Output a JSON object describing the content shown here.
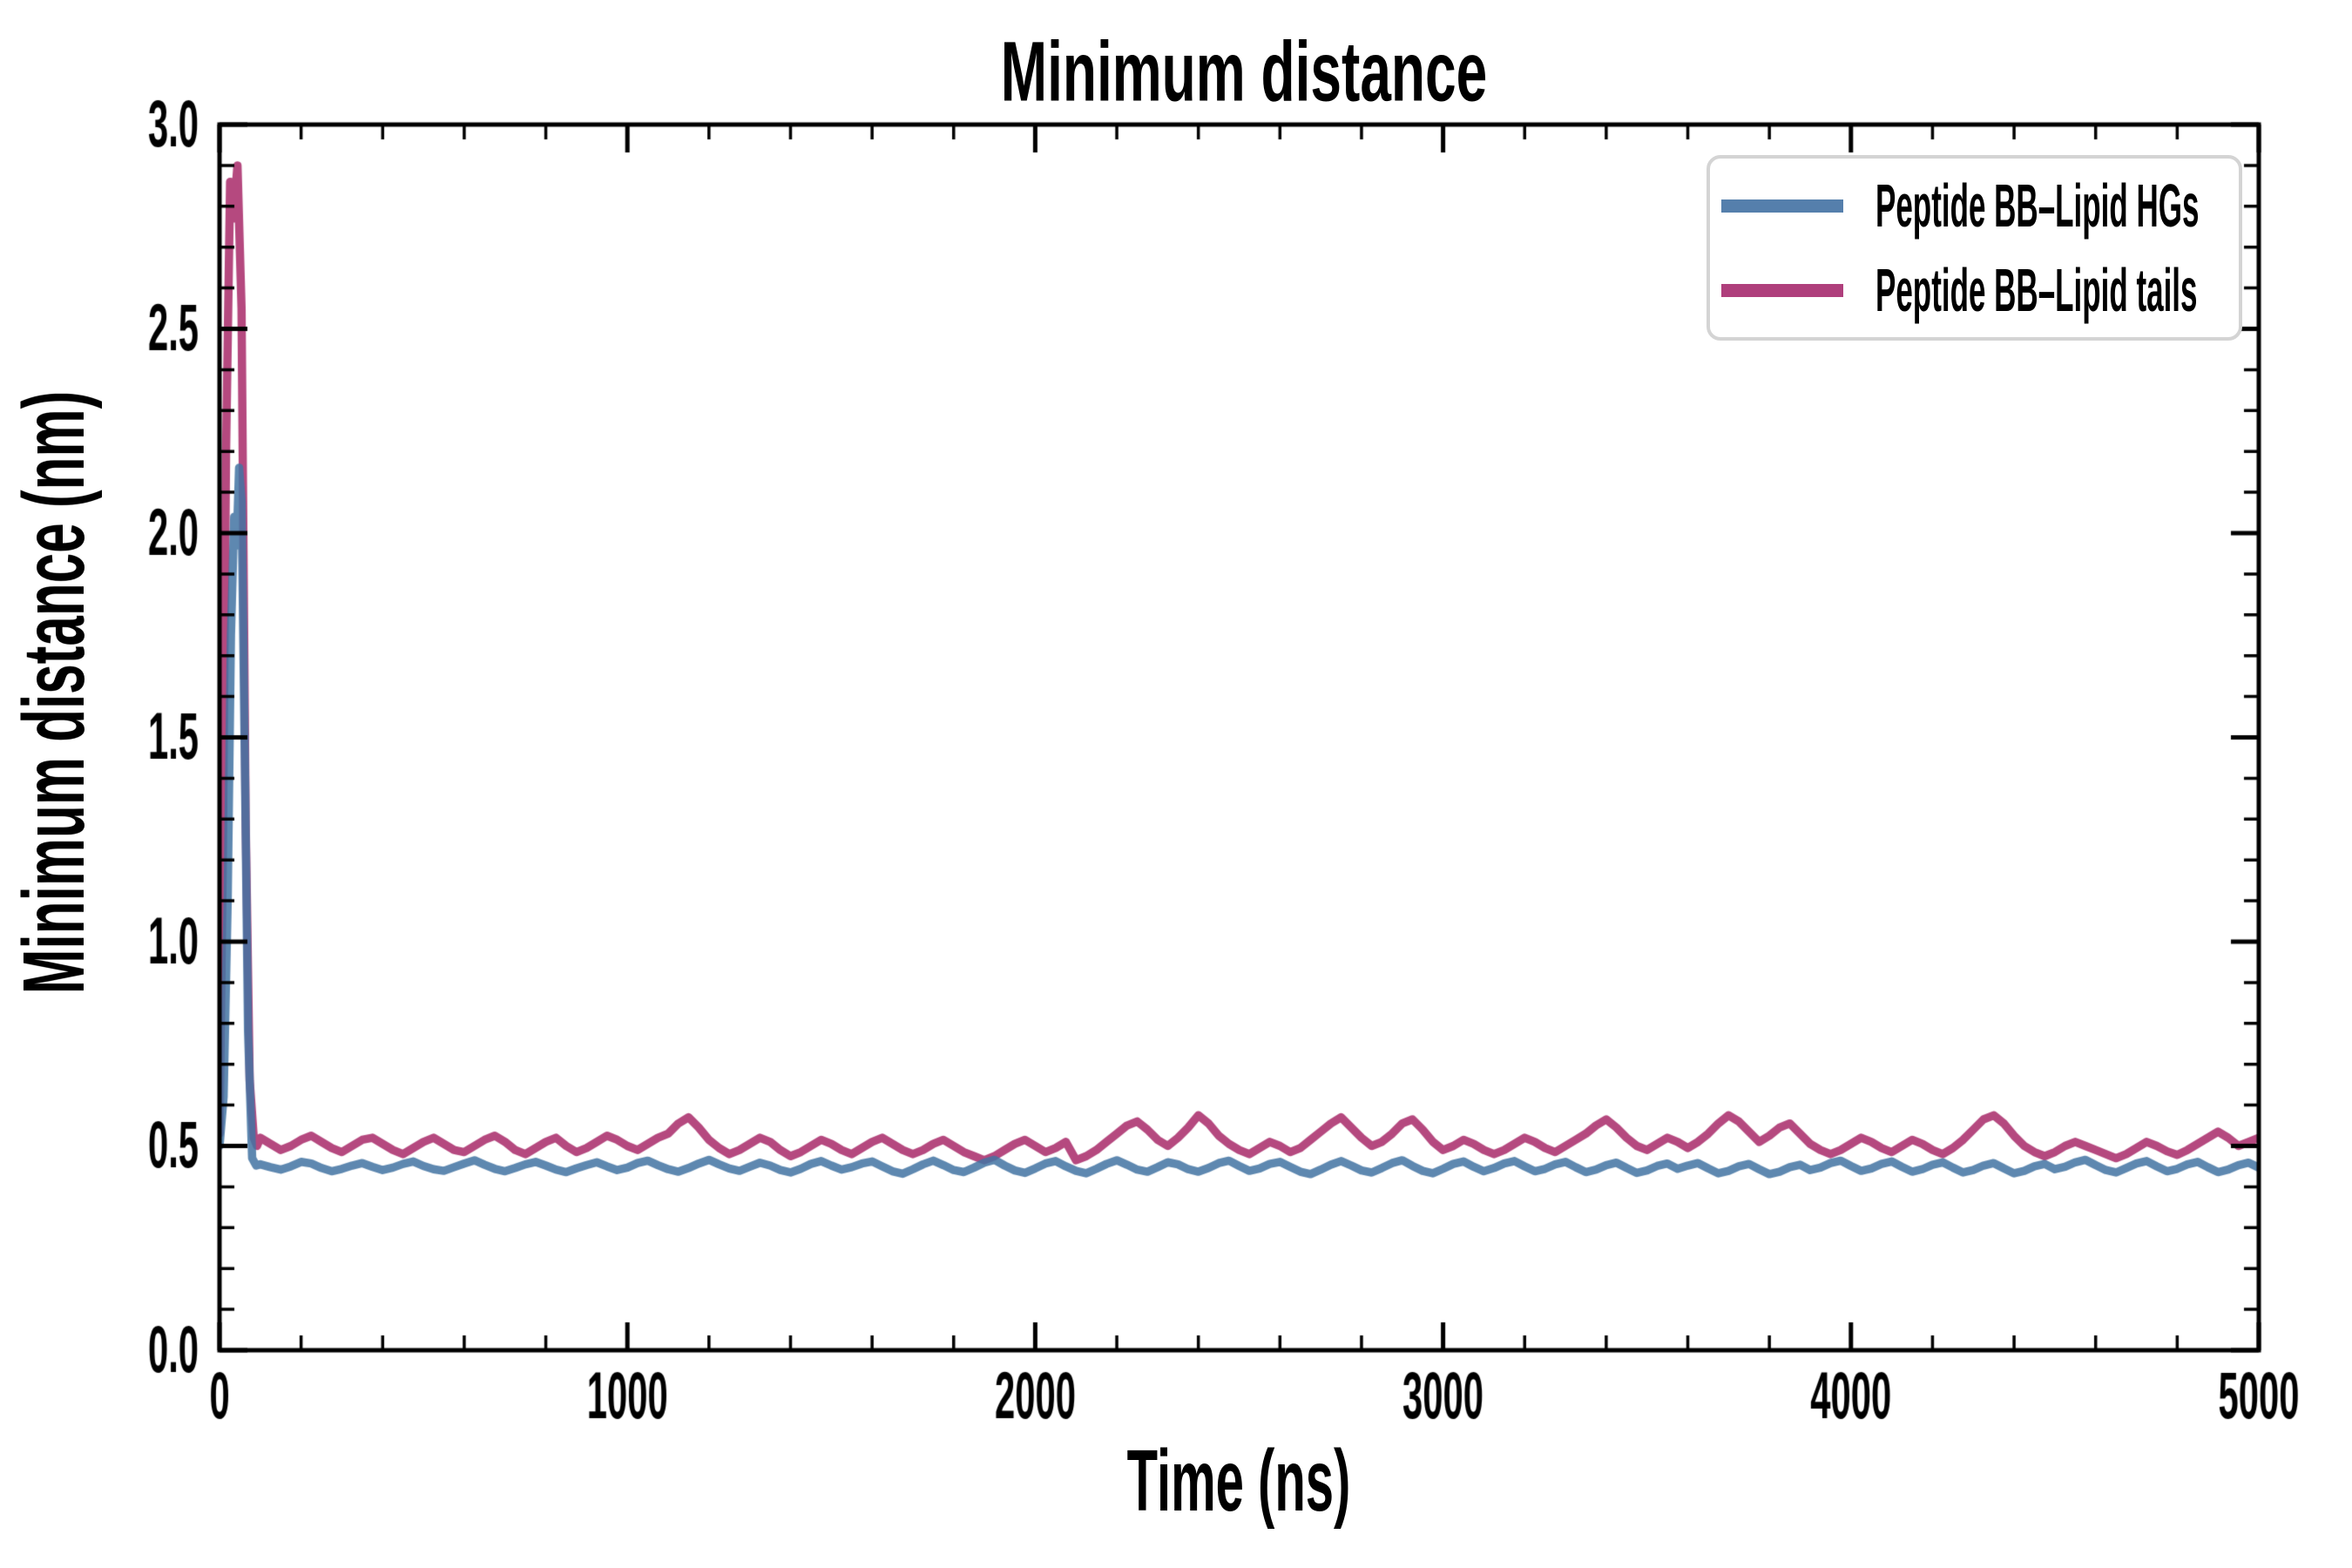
{
  "figure": {
    "title": "Minimum distance"
  },
  "axes": {
    "xlabel": "Time (ns)",
    "ylabel": "Minimum distance (nm)",
    "x_tick_labels": [
      "0",
      "1000",
      "2000",
      "3000",
      "4000",
      "5000"
    ],
    "y_tick_labels": [
      "0.0",
      "0.5",
      "1.0",
      "1.5",
      "2.0",
      "2.5",
      "3.0"
    ]
  },
  "legend": {
    "border_color": "#d4d4d4",
    "items": [
      {
        "label": "Peptide BB–Lipid HGs",
        "color": "#557FAC"
      },
      {
        "label": "Peptide BB–Lipid tails",
        "color": "#AF3F7C"
      }
    ]
  },
  "colors": {
    "background": "#ffffff",
    "axis": "#000000",
    "text": "#000000",
    "hg_line": "rgba(66,115,162,0.85)",
    "hg_solid": "#557FAC",
    "tails_line": "#B5497F"
  },
  "chart_data": {
    "type": "line",
    "title": "Minimum distance",
    "xlabel": "Time (ns)",
    "ylabel": "Minimum distance (nm)",
    "xlim": [
      0,
      5000
    ],
    "ylim": [
      0.0,
      3.0
    ],
    "x_major_ticks": [
      0,
      1000,
      2000,
      3000,
      4000,
      5000
    ],
    "x_minor_tick_step": 200,
    "y_major_ticks": [
      0.0,
      0.5,
      1.0,
      1.5,
      2.0,
      2.5,
      3.0
    ],
    "y_minor_tick_step": 0.1,
    "grid": false,
    "tick_direction": "in",
    "legend_position": "upper right",
    "series": [
      {
        "name": "Peptide BB–Lipid tails",
        "color": "#B5497F",
        "head": [
          [
            0,
            0.53
          ],
          [
            8,
            1.2
          ],
          [
            16,
            2.2
          ],
          [
            26,
            2.86
          ],
          [
            34,
            2.77
          ],
          [
            44,
            2.9
          ],
          [
            54,
            2.55
          ],
          [
            64,
            1.3
          ],
          [
            74,
            0.66
          ],
          [
            84,
            0.52
          ],
          [
            92,
            0.5
          ]
        ],
        "t0": 100,
        "dt": 25,
        "values": [
          0.52,
          0.505,
          0.49,
          0.5,
          0.515,
          0.525,
          0.51,
          0.495,
          0.485,
          0.5,
          0.515,
          0.52,
          0.505,
          0.49,
          0.48,
          0.495,
          0.51,
          0.52,
          0.505,
          0.49,
          0.485,
          0.5,
          0.515,
          0.525,
          0.51,
          0.49,
          0.48,
          0.495,
          0.51,
          0.52,
          0.5,
          0.485,
          0.495,
          0.51,
          0.525,
          0.515,
          0.5,
          0.49,
          0.505,
          0.52,
          0.53,
          0.555,
          0.57,
          0.545,
          0.515,
          0.495,
          0.48,
          0.49,
          0.505,
          0.52,
          0.51,
          0.49,
          0.475,
          0.485,
          0.5,
          0.515,
          0.505,
          0.49,
          0.48,
          0.495,
          0.51,
          0.52,
          0.505,
          0.49,
          0.48,
          0.49,
          0.505,
          0.515,
          0.5,
          0.485,
          0.475,
          0.465,
          0.475,
          0.49,
          0.505,
          0.515,
          0.5,
          0.485,
          0.495,
          0.51,
          0.465,
          0.475,
          0.49,
          0.51,
          0.53,
          0.55,
          0.56,
          0.54,
          0.515,
          0.5,
          0.52,
          0.545,
          0.575,
          0.555,
          0.525,
          0.505,
          0.49,
          0.48,
          0.495,
          0.51,
          0.5,
          0.485,
          0.495,
          0.515,
          0.535,
          0.555,
          0.57,
          0.545,
          0.52,
          0.5,
          0.51,
          0.53,
          0.555,
          0.565,
          0.54,
          0.51,
          0.49,
          0.5,
          0.515,
          0.505,
          0.49,
          0.48,
          0.49,
          0.505,
          0.52,
          0.51,
          0.495,
          0.485,
          0.5,
          0.515,
          0.53,
          0.55,
          0.565,
          0.545,
          0.52,
          0.5,
          0.49,
          0.505,
          0.52,
          0.51,
          0.495,
          0.51,
          0.53,
          0.555,
          0.575,
          0.56,
          0.535,
          0.51,
          0.525,
          0.545,
          0.555,
          0.53,
          0.505,
          0.49,
          0.48,
          0.49,
          0.505,
          0.52,
          0.51,
          0.495,
          0.485,
          0.5,
          0.515,
          0.505,
          0.49,
          0.48,
          0.495,
          0.515,
          0.54,
          0.565,
          0.575,
          0.555,
          0.525,
          0.5,
          0.485,
          0.475,
          0.485,
          0.5,
          0.51,
          0.5,
          0.49,
          0.48,
          0.47,
          0.48,
          0.495,
          0.51,
          0.5,
          0.487,
          0.478,
          0.49,
          0.505,
          0.52,
          0.535,
          0.52,
          0.5,
          0.51,
          0.52
        ]
      },
      {
        "name": "Peptide BB–Lipid HGs",
        "color": "#557FAC",
        "head": [
          [
            0,
            0.5
          ],
          [
            10,
            0.62
          ],
          [
            20,
            1.1
          ],
          [
            28,
            1.75
          ],
          [
            36,
            2.04
          ],
          [
            42,
            1.97
          ],
          [
            48,
            2.16
          ],
          [
            54,
            2.08
          ],
          [
            62,
            1.45
          ],
          [
            70,
            0.78
          ],
          [
            80,
            0.47
          ],
          [
            90,
            0.452
          ]
        ],
        "t0": 100,
        "dt": 25,
        "values": [
          0.455,
          0.448,
          0.442,
          0.45,
          0.461,
          0.457,
          0.446,
          0.438,
          0.444,
          0.452,
          0.458,
          0.449,
          0.441,
          0.447,
          0.456,
          0.462,
          0.451,
          0.443,
          0.439,
          0.448,
          0.457,
          0.465,
          0.454,
          0.444,
          0.438,
          0.446,
          0.455,
          0.461,
          0.452,
          0.442,
          0.436,
          0.445,
          0.453,
          0.46,
          0.45,
          0.441,
          0.447,
          0.458,
          0.464,
          0.453,
          0.443,
          0.437,
          0.446,
          0.457,
          0.466,
          0.455,
          0.445,
          0.439,
          0.449,
          0.459,
          0.452,
          0.441,
          0.435,
          0.444,
          0.456,
          0.463,
          0.452,
          0.442,
          0.448,
          0.457,
          0.462,
          0.45,
          0.438,
          0.432,
          0.443,
          0.455,
          0.464,
          0.453,
          0.441,
          0.436,
          0.447,
          0.459,
          0.466,
          0.452,
          0.44,
          0.434,
          0.445,
          0.457,
          0.463,
          0.45,
          0.439,
          0.433,
          0.444,
          0.456,
          0.465,
          0.454,
          0.442,
          0.437,
          0.448,
          0.46,
          0.455,
          0.443,
          0.437,
          0.446,
          0.458,
          0.464,
          0.451,
          0.439,
          0.445,
          0.456,
          0.461,
          0.449,
          0.437,
          0.431,
          0.442,
          0.454,
          0.463,
          0.452,
          0.44,
          0.435,
          0.446,
          0.458,
          0.465,
          0.451,
          0.439,
          0.433,
          0.444,
          0.456,
          0.462,
          0.449,
          0.438,
          0.446,
          0.457,
          0.463,
          0.45,
          0.438,
          0.444,
          0.455,
          0.461,
          0.448,
          0.436,
          0.442,
          0.453,
          0.459,
          0.446,
          0.434,
          0.44,
          0.451,
          0.457,
          0.444,
          0.452,
          0.458,
          0.445,
          0.433,
          0.439,
          0.45,
          0.456,
          0.443,
          0.431,
          0.437,
          0.448,
          0.454,
          0.441,
          0.447,
          0.458,
          0.464,
          0.451,
          0.439,
          0.445,
          0.456,
          0.462,
          0.449,
          0.437,
          0.443,
          0.454,
          0.46,
          0.447,
          0.435,
          0.441,
          0.452,
          0.458,
          0.445,
          0.433,
          0.439,
          0.45,
          0.456,
          0.443,
          0.449,
          0.46,
          0.466,
          0.453,
          0.441,
          0.435,
          0.446,
          0.457,
          0.463,
          0.45,
          0.438,
          0.444,
          0.455,
          0.461,
          0.448,
          0.436,
          0.442,
          0.453,
          0.459,
          0.447
        ]
      }
    ]
  }
}
